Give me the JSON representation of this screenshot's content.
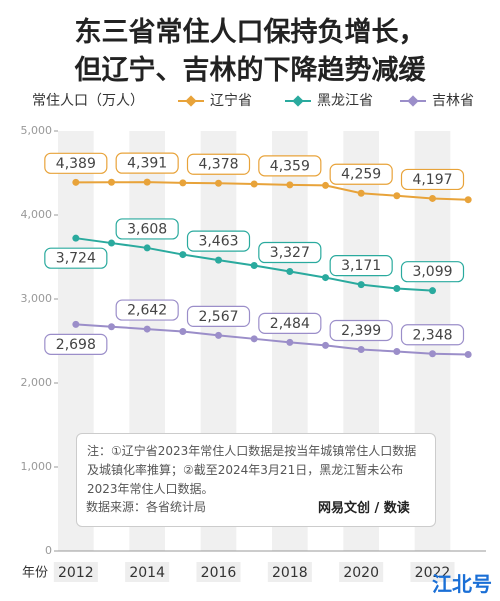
{
  "title_lines": [
    "东三省常住人口保持负增长，",
    "但辽宁、吉林的下降趋势减缓"
  ],
  "chart_data": {
    "type": "line",
    "y_label": "常住人口（万人）",
    "x_label": "年份",
    "x": [
      2012,
      2013,
      2014,
      2015,
      2016,
      2017,
      2018,
      2019,
      2020,
      2021,
      2022,
      2023
    ],
    "xlim": [
      2011.5,
      2023.5
    ],
    "xticks": [
      2012,
      2014,
      2016,
      2018,
      2020,
      2022
    ],
    "ylim": [
      0,
      5000
    ],
    "yticks": [
      0,
      {
        "value": 1000,
        "label": "1,000"
      },
      {
        "value": 2000,
        "label": "2,000"
      },
      {
        "value": 3000,
        "label": "3,000"
      },
      {
        "value": 4000,
        "label": "4,000"
      },
      {
        "value": 5000,
        "label": "5,000"
      }
    ],
    "grid": false,
    "series": [
      {
        "name": "辽宁省",
        "color": "#e8a33a",
        "values": [
          4389,
          4390,
          4391,
          4382,
          4378,
          4369,
          4359,
          4352,
          4259,
          4229,
          4197,
          4182
        ],
        "value_labels": [
          "4,389",
          null,
          "4,391",
          null,
          "4,378",
          null,
          "4,359",
          null,
          "4,259",
          null,
          "4,197",
          null
        ]
      },
      {
        "name": "黑龙江省",
        "color": "#2aaa9e",
        "values": [
          3724,
          3666,
          3608,
          3529,
          3463,
          3399,
          3327,
          3255,
          3171,
          3125,
          3099,
          null
        ],
        "value_labels": [
          "3,724",
          null,
          "3,608",
          null,
          "3,463",
          null,
          "3,327",
          null,
          "3,171",
          null,
          "3,099",
          null
        ]
      },
      {
        "name": "吉林省",
        "color": "#9b8ec9",
        "values": [
          2698,
          2670,
          2642,
          2613,
          2567,
          2526,
          2484,
          2448,
          2399,
          2375,
          2348,
          2339
        ],
        "value_labels": [
          "2,698",
          null,
          "2,642",
          null,
          "2,567",
          null,
          "2,484",
          null,
          "2,399",
          null,
          "2,348",
          null
        ]
      }
    ]
  },
  "note": "注：①辽宁省2023年常住人口数据是按当年城镇常住人口数据及城镇化率推算；②截至2024年3月21日，黑龙江暂未公布2023年常住人口数据。",
  "source": "数据来源：各省统计局",
  "brand": "网易文创 / 数读",
  "watermark": "江北号"
}
